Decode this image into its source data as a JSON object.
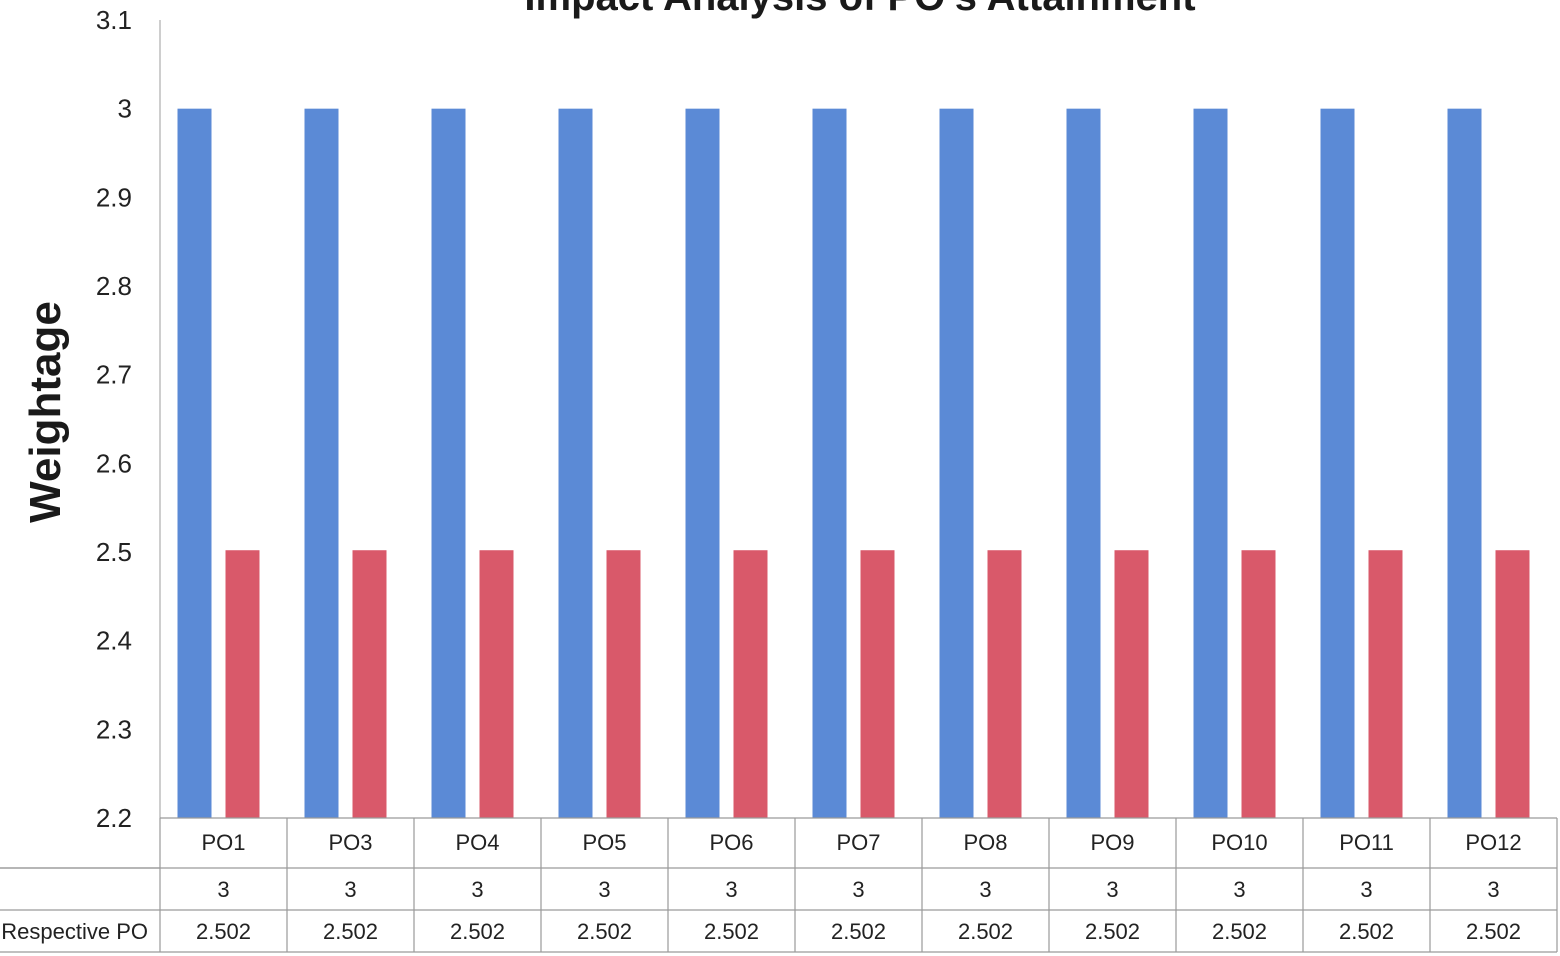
{
  "chart_data": {
    "type": "bar",
    "title": "Impact Analysis of PO's  Attainment",
    "ylabel": "Weightage",
    "xlabel": "",
    "ylim": [
      2.2,
      3.1
    ],
    "yticks": [
      "3.1",
      "3",
      "2.9",
      "2.8",
      "2.7",
      "2.6",
      "2.5",
      "2.4",
      "2.3",
      "2.2"
    ],
    "grid": false,
    "categories": [
      "PO1",
      "PO3",
      "PO4",
      "PO5",
      "PO6",
      "PO7",
      "PO8",
      "PO9",
      "PO10",
      "PO11",
      "PO12"
    ],
    "series": [
      {
        "name": "",
        "color": "#5b8ad6",
        "values": [
          3,
          3,
          3,
          3,
          3,
          3,
          3,
          3,
          3,
          3,
          3
        ],
        "labels": [
          "3",
          "3",
          "3",
          "3",
          "3",
          "3",
          "3",
          "3",
          "3",
          "3",
          "3"
        ]
      },
      {
        "name": "Respective PO",
        "color": "#d9596a",
        "values": [
          2.502,
          2.502,
          2.502,
          2.502,
          2.502,
          2.502,
          2.502,
          2.502,
          2.502,
          2.502,
          2.502
        ],
        "labels": [
          "2.502",
          "2.502",
          "2.502",
          "2.502",
          "2.502",
          "2.502",
          "2.502",
          "2.502",
          "2.502",
          "2.502",
          "2.502"
        ]
      }
    ]
  }
}
